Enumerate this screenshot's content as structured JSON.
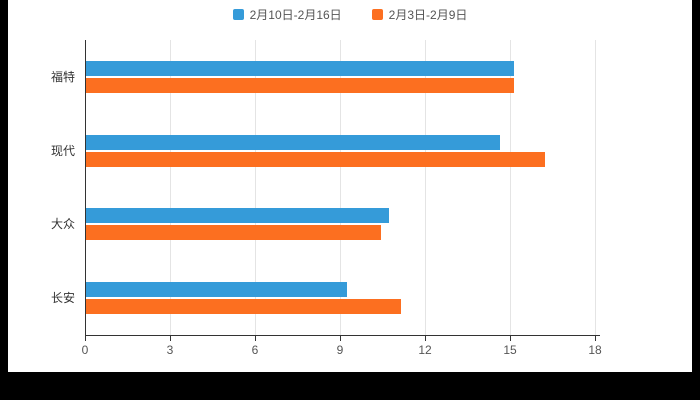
{
  "page": {
    "background_color": "#000000",
    "surface_color": "#ffffff"
  },
  "chart_data": {
    "type": "bar",
    "orientation": "horizontal",
    "title": "",
    "xlabel": "",
    "ylabel": "",
    "categories": [
      "福特",
      "现代",
      "大众",
      "长安"
    ],
    "series": [
      {
        "name": "2月10日-2月16日",
        "color": "#359BD9",
        "values": [
          15.1,
          14.6,
          10.7,
          9.2
        ]
      },
      {
        "name": "2月3日-2月9日",
        "color": "#FC6F20",
        "values": [
          15.1,
          16.2,
          10.4,
          11.1
        ]
      }
    ],
    "xlim": [
      0,
      18
    ],
    "xticks": [
      0,
      3,
      6,
      9,
      12,
      15,
      18
    ],
    "grid": true,
    "legend_position": "top",
    "colors": {
      "grid": "#e4e4e4",
      "axis": "#333333",
      "tick_label": "#555555",
      "category_label": "#333333"
    }
  }
}
